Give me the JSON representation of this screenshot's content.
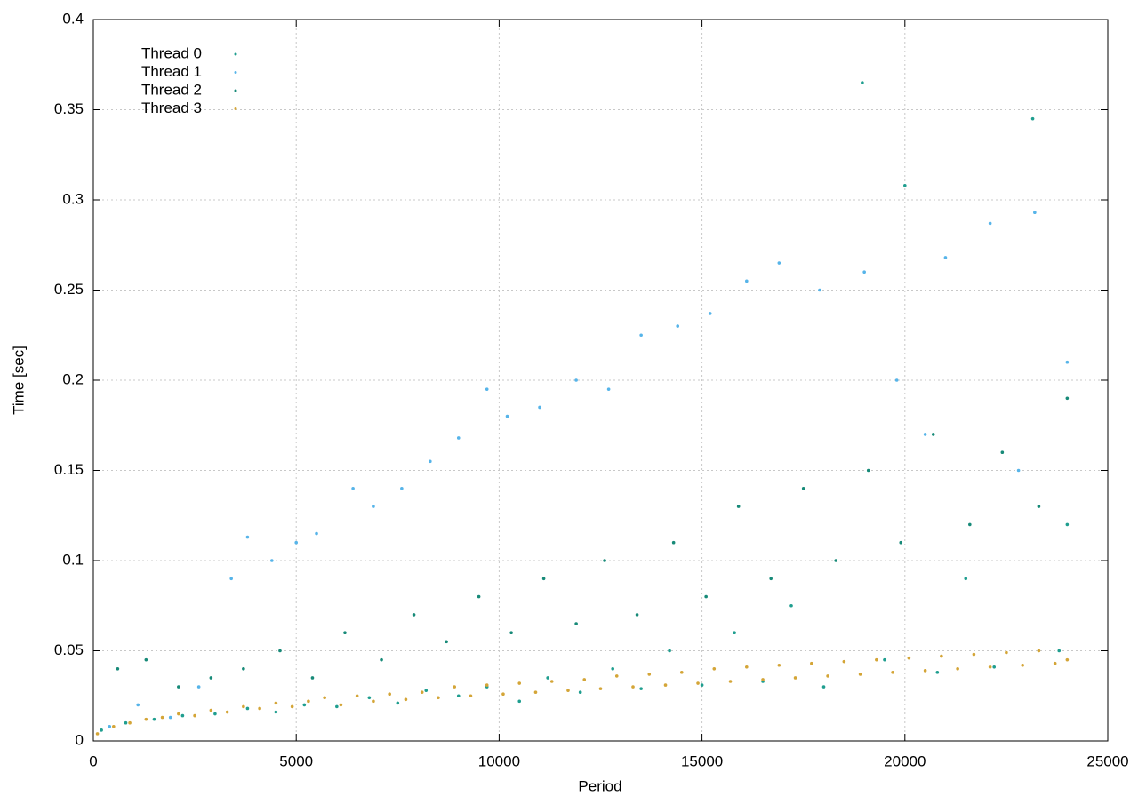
{
  "chart_data": {
    "type": "scatter",
    "x_label": "Period",
    "y_label": "Time [sec]",
    "xlim": [
      0,
      25000
    ],
    "ylim": [
      0,
      0.4
    ],
    "xticks": [
      0,
      5000,
      10000,
      15000,
      20000,
      25000
    ],
    "yticks": [
      0,
      0.05,
      0.1,
      0.15,
      0.2,
      0.25,
      0.3,
      0.35,
      0.4
    ],
    "grid": true,
    "legend": "top-left",
    "series": [
      {
        "name": "Thread 0",
        "color": "#1f9e8f",
        "x": [
          200,
          800,
          1500,
          2200,
          3000,
          3800,
          4500,
          5200,
          6000,
          6800,
          7500,
          8200,
          9000,
          9700,
          10500,
          11200,
          12000,
          12800,
          13500,
          14200,
          15000,
          15800,
          16500,
          17200,
          18000,
          18950,
          19500,
          20000,
          20800,
          21500,
          22200,
          23150,
          23800,
          24000
        ],
        "values": [
          0.006,
          0.01,
          0.012,
          0.014,
          0.015,
          0.018,
          0.016,
          0.02,
          0.019,
          0.024,
          0.021,
          0.028,
          0.025,
          0.03,
          0.022,
          0.035,
          0.027,
          0.04,
          0.029,
          0.05,
          0.031,
          0.06,
          0.033,
          0.075,
          0.03,
          0.365,
          0.045,
          0.308,
          0.038,
          0.09,
          0.041,
          0.345,
          0.05,
          0.12
        ]
      },
      {
        "name": "Thread 1",
        "color": "#56b4e9",
        "x": [
          400,
          1100,
          1900,
          2600,
          3400,
          3800,
          4400,
          5000,
          5500,
          6400,
          6900,
          7600,
          8300,
          9000,
          9700,
          10200,
          11000,
          11900,
          12700,
          13500,
          14400,
          15200,
          16100,
          16900,
          17900,
          19000,
          21000,
          22100,
          23200,
          24000,
          19800,
          20500,
          22800
        ],
        "values": [
          0.008,
          0.02,
          0.013,
          0.03,
          0.09,
          0.113,
          0.1,
          0.11,
          0.115,
          0.14,
          0.13,
          0.14,
          0.155,
          0.168,
          0.195,
          0.18,
          0.185,
          0.2,
          0.195,
          0.225,
          0.23,
          0.237,
          0.255,
          0.265,
          0.25,
          0.26,
          0.268,
          0.287,
          0.293,
          0.21,
          0.2,
          0.17,
          0.15
        ]
      },
      {
        "name": "Thread 2",
        "color": "#178a78",
        "x": [
          600,
          1300,
          2100,
          2900,
          3700,
          4600,
          5400,
          6200,
          7100,
          7900,
          8700,
          9500,
          10300,
          11100,
          11900,
          12600,
          13400,
          14300,
          15100,
          15900,
          16700,
          17500,
          18300,
          19100,
          19900,
          20700,
          21600,
          22400,
          23300,
          24000
        ],
        "values": [
          0.04,
          0.045,
          0.03,
          0.035,
          0.04,
          0.05,
          0.035,
          0.06,
          0.045,
          0.07,
          0.055,
          0.08,
          0.06,
          0.09,
          0.065,
          0.1,
          0.07,
          0.11,
          0.08,
          0.13,
          0.09,
          0.14,
          0.1,
          0.15,
          0.11,
          0.17,
          0.12,
          0.16,
          0.13,
          0.19
        ]
      },
      {
        "name": "Thread 3",
        "color": "#d4a537",
        "x": [
          100,
          500,
          900,
          1300,
          1700,
          2100,
          2500,
          2900,
          3300,
          3700,
          4100,
          4500,
          4900,
          5300,
          5700,
          6100,
          6500,
          6900,
          7300,
          7700,
          8100,
          8500,
          8900,
          9300,
          9700,
          10100,
          10500,
          10900,
          11300,
          11700,
          12100,
          12500,
          12900,
          13300,
          13700,
          14100,
          14500,
          14900,
          15300,
          15700,
          16100,
          16500,
          16900,
          17300,
          17700,
          18100,
          18500,
          18900,
          19300,
          19700,
          20100,
          20500,
          20900,
          21300,
          21700,
          22100,
          22500,
          22900,
          23300,
          23700,
          24000
        ],
        "values": [
          0.004,
          0.008,
          0.01,
          0.012,
          0.013,
          0.015,
          0.014,
          0.017,
          0.016,
          0.019,
          0.018,
          0.021,
          0.019,
          0.022,
          0.024,
          0.02,
          0.025,
          0.022,
          0.026,
          0.023,
          0.027,
          0.024,
          0.03,
          0.025,
          0.031,
          0.026,
          0.032,
          0.027,
          0.033,
          0.028,
          0.034,
          0.029,
          0.036,
          0.03,
          0.037,
          0.031,
          0.038,
          0.032,
          0.04,
          0.033,
          0.041,
          0.034,
          0.042,
          0.035,
          0.043,
          0.036,
          0.044,
          0.037,
          0.045,
          0.038,
          0.046,
          0.039,
          0.047,
          0.04,
          0.048,
          0.041,
          0.049,
          0.042,
          0.05,
          0.043,
          0.045
        ]
      }
    ]
  }
}
